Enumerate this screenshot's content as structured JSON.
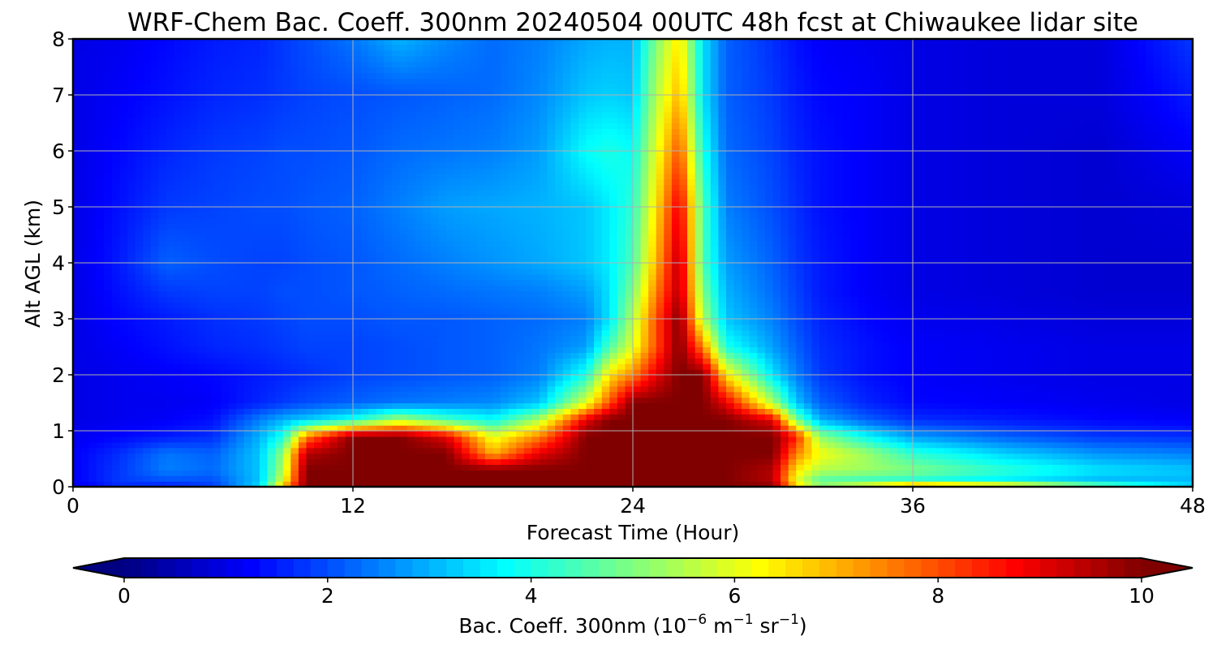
{
  "chart_data": {
    "type": "heatmap",
    "title": "WRF-Chem Bac. Coeff. 300nm  20240504 00UTC 48h fcst at Chiwaukee lidar site",
    "xlabel": "Forecast Time (Hour)",
    "ylabel": "Alt AGL (km)",
    "xlim": [
      0,
      48
    ],
    "ylim": [
      0,
      8
    ],
    "x_ticks": [
      0,
      12,
      24,
      36,
      48
    ],
    "y_ticks": [
      0,
      1,
      2,
      3,
      4,
      5,
      6,
      7,
      8
    ],
    "grid": true,
    "colormap": "jet",
    "colorbar": {
      "label_main": "Bac. Coeff. 300nm  (10",
      "label_exp1": "−6",
      "label_mid": " m",
      "label_exp2": "−1",
      "label_mid2": " sr",
      "label_exp3": "−1",
      "label_end": ")",
      "range": [
        0,
        10
      ],
      "ticks": [
        0,
        2,
        4,
        6,
        8,
        10
      ],
      "extend": "both",
      "orientation": "horizontal",
      "position": "bottom"
    },
    "x_hours": [
      0,
      2,
      4,
      6,
      8,
      9,
      10,
      12,
      14,
      16,
      18,
      20,
      22,
      23,
      24,
      25,
      26,
      27,
      28,
      30,
      31,
      32,
      34,
      36,
      40,
      44,
      48
    ],
    "y_km": [
      0,
      0.1,
      0.3,
      0.6,
      0.9,
      1.2,
      1.5,
      2,
      2.5,
      3,
      3.5,
      4,
      5,
      6,
      7,
      8
    ],
    "values": [
      [
        1.0,
        1.6,
        1.4,
        1.8,
        3.5,
        7,
        10,
        10,
        10,
        10,
        10,
        10,
        10,
        10,
        10,
        10,
        10,
        10,
        10,
        10,
        7,
        5.5,
        7,
        9,
        8,
        5.5,
        3.5
      ],
      [
        1.2,
        1.8,
        2.0,
        2.0,
        3.2,
        6,
        10,
        10,
        10,
        10,
        10,
        10,
        10,
        10,
        10,
        10,
        10,
        10,
        10,
        9.5,
        6,
        4.5,
        4.2,
        4.0,
        3.5,
        3.0,
        3.0
      ],
      [
        1.2,
        1.8,
        2.5,
        2.3,
        3.2,
        5.5,
        10,
        10,
        10,
        10,
        10,
        10,
        10,
        10,
        10,
        10,
        10,
        10,
        10,
        9.5,
        6.5,
        5.5,
        5.3,
        5.0,
        4.2,
        3.5,
        3.2
      ],
      [
        1.2,
        1.7,
        2.4,
        2.2,
        3.2,
        5.2,
        9.5,
        10,
        10,
        10,
        7,
        9,
        10,
        10,
        10,
        10,
        10,
        10,
        10,
        10,
        7.5,
        6.2,
        5.3,
        4.2,
        3.3,
        2.7,
        2.5
      ],
      [
        1.1,
        1.3,
        1.5,
        1.7,
        3.0,
        4.0,
        7.5,
        10,
        10,
        9,
        6,
        7.5,
        10,
        10,
        10,
        10,
        10,
        10,
        10,
        10,
        8.5,
        5.2,
        3.8,
        2.8,
        2.2,
        1.8,
        1.7
      ],
      [
        1.0,
        1.1,
        1.2,
        1.4,
        2.5,
        3.0,
        3.3,
        4,
        5.5,
        4.5,
        3.8,
        5.5,
        9,
        10,
        10,
        10,
        10,
        10,
        10,
        9,
        5,
        3.0,
        2.2,
        1.7,
        1.5,
        1.3,
        1.2
      ],
      [
        1.0,
        1.1,
        1.1,
        1.2,
        1.6,
        1.8,
        2.0,
        2.2,
        2.4,
        2.5,
        2.6,
        3.2,
        6,
        8,
        10,
        10,
        10,
        10,
        9,
        5.5,
        3.2,
        2.2,
        1.6,
        1.3,
        1.2,
        1.1,
        1.0
      ],
      [
        1.0,
        1.1,
        1.2,
        1.3,
        1.5,
        1.6,
        1.7,
        1.9,
        2.0,
        2.1,
        2.2,
        2.5,
        4,
        6.5,
        7.5,
        9,
        10,
        10,
        6.5,
        3.5,
        2.5,
        1.8,
        1.4,
        1.2,
        1.1,
        1.0,
        1.0
      ],
      [
        1.0,
        1.2,
        1.4,
        1.6,
        1.7,
        1.8,
        1.9,
        1.9,
        2.0,
        2.1,
        2.2,
        2.4,
        2.8,
        4.5,
        6,
        8,
        10,
        7.5,
        4,
        2.8,
        2.2,
        1.7,
        1.4,
        1.2,
        1.1,
        1.0,
        1.0
      ],
      [
        1.0,
        1.3,
        1.5,
        1.7,
        1.8,
        1.9,
        2.0,
        2.0,
        2.1,
        2.1,
        2.2,
        2.3,
        2.5,
        3.5,
        5.5,
        8,
        10,
        5.5,
        3.2,
        2.5,
        2.0,
        1.6,
        1.3,
        1.1,
        1.0,
        0.9,
        0.9
      ],
      [
        1.0,
        1.4,
        1.8,
        1.9,
        1.9,
        2.0,
        2.0,
        2.1,
        2.2,
        2.3,
        2.4,
        2.5,
        2.8,
        3.5,
        5.0,
        7.5,
        9.5,
        5.0,
        3.0,
        2.3,
        1.9,
        1.5,
        1.2,
        1.0,
        0.9,
        0.8,
        0.8
      ],
      [
        1.0,
        1.5,
        2.2,
        2.0,
        1.9,
        1.9,
        2.0,
        2.1,
        2.3,
        2.5,
        2.7,
        2.9,
        3.2,
        3.6,
        4.5,
        7.0,
        9.5,
        4.5,
        2.8,
        2.2,
        1.8,
        1.5,
        1.2,
        1.0,
        0.9,
        0.8,
        0.8
      ],
      [
        1.0,
        1.4,
        1.8,
        1.9,
        2.0,
        2.0,
        2.1,
        2.2,
        2.5,
        2.8,
        2.9,
        3.0,
        3.2,
        3.6,
        4.2,
        6.5,
        9,
        4.5,
        2.5,
        2.0,
        1.7,
        1.4,
        1.2,
        1.0,
        0.9,
        0.8,
        0.9
      ],
      [
        1.0,
        1.3,
        1.6,
        1.8,
        1.9,
        2.0,
        2.0,
        2.1,
        2.3,
        2.4,
        2.5,
        2.8,
        3.8,
        4.0,
        3.8,
        6.0,
        8,
        4.0,
        2.3,
        1.9,
        1.6,
        1.4,
        1.2,
        1.0,
        0.9,
        0.8,
        1.2
      ],
      [
        1.0,
        1.2,
        1.4,
        1.6,
        1.7,
        1.8,
        1.9,
        2.0,
        2.1,
        2.2,
        2.3,
        2.6,
        3.2,
        3.3,
        3.2,
        5.5,
        7,
        3.5,
        2.2,
        1.8,
        1.5,
        1.3,
        1.2,
        1.0,
        0.9,
        0.9,
        1.5
      ],
      [
        1.0,
        1.1,
        1.3,
        1.5,
        1.6,
        1.8,
        2.0,
        2.4,
        3.0,
        2.6,
        2.3,
        2.5,
        2.9,
        3.0,
        3.0,
        5.0,
        6.5,
        3.5,
        2.2,
        1.7,
        1.4,
        1.2,
        1.1,
        1.0,
        0.9,
        0.9,
        1.8
      ]
    ]
  }
}
